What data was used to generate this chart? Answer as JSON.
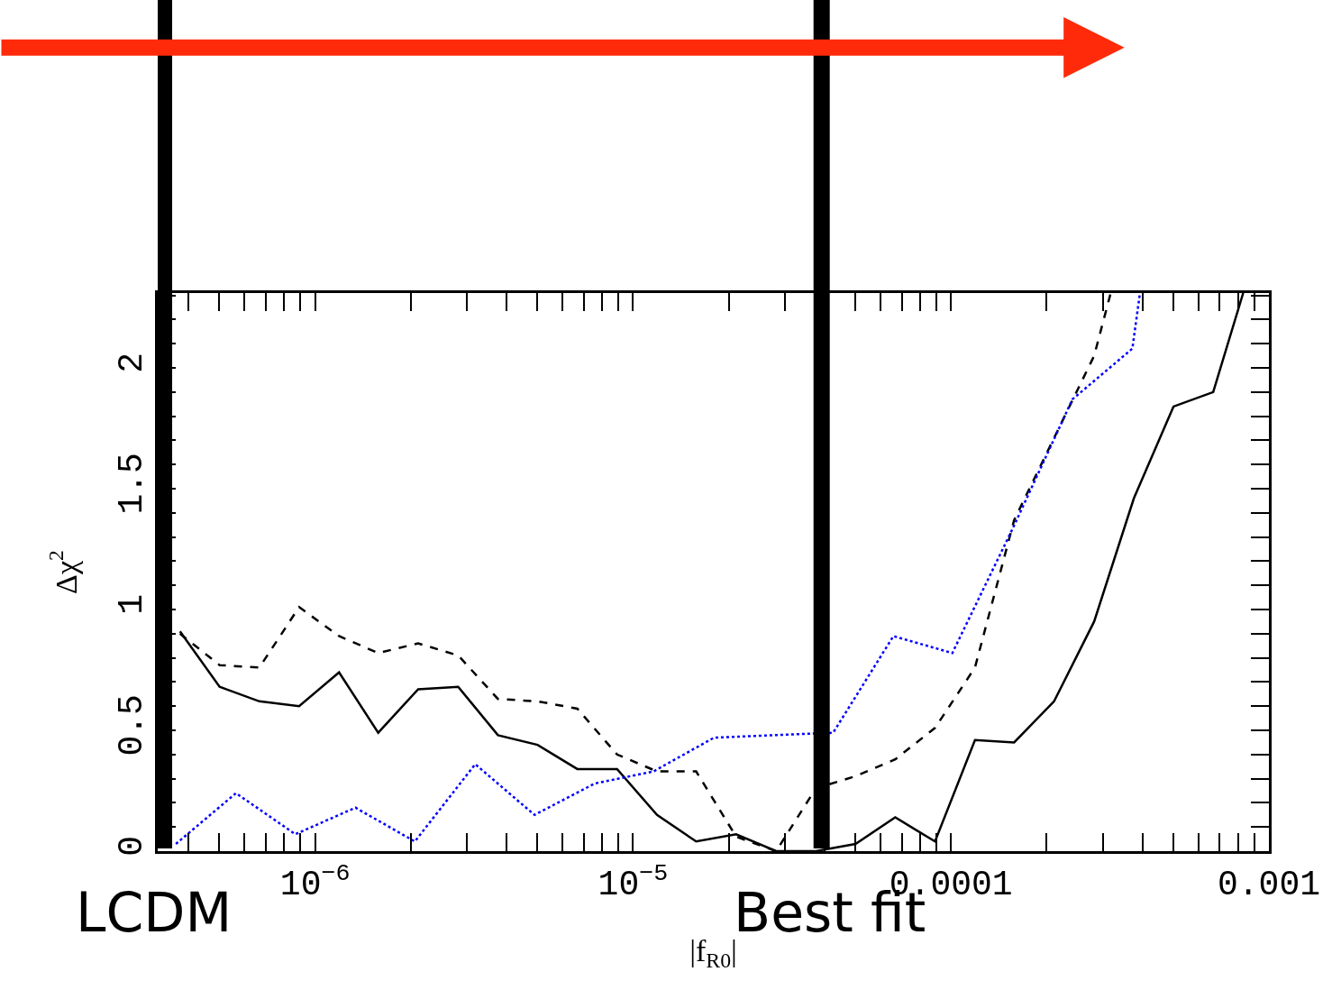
{
  "chart_data": {
    "type": "line",
    "xlabel": "|f$_{R0}$|",
    "ylabel": "Δχ$^{2}$",
    "xlim": [
      3.2e-07,
      0.001
    ],
    "ylim": [
      0,
      2.31
    ],
    "log": "x",
    "xticks": [
      {
        "value": 1e-06,
        "label": "10$^{−6}$"
      },
      {
        "value": 1e-05,
        "label": "10$^{−5}$"
      },
      0.0001,
      0.001
    ],
    "yticks": [
      0,
      0.5,
      1,
      1.5,
      2
    ],
    "marker": "none",
    "series": [
      {
        "color": "#000000",
        "line_style": "solid",
        "x": [
          3.76e-07,
          5.01e-07,
          6.68e-07,
          8.91e-07,
          1.19e-06,
          1.58e-06,
          2.11e-06,
          2.82e-06,
          3.76e-06,
          5.01e-06,
          6.68e-06,
          8.91e-06,
          1.19e-05,
          1.58e-05,
          2.11e-05,
          2.82e-05,
          3.76e-05,
          5.01e-05,
          6.68e-05,
          8.91e-05,
          0.000119,
          0.000158,
          0.000211,
          0.000282,
          0.000376,
          0.000501,
          0.000668,
          0.00083
        ],
        "values": [
          0.91,
          0.68,
          0.62,
          0.6,
          0.74,
          0.49,
          0.67,
          0.68,
          0.48,
          0.44,
          0.34,
          0.34,
          0.15,
          0.04,
          0.07,
          0,
          0,
          0.03,
          0.14,
          0.04,
          0.46,
          0.45,
          0.62,
          0.95,
          1.46,
          1.84,
          1.9,
          2.31
        ]
      },
      {
        "color": "#000000",
        "line_style": "dashed",
        "x": [
          3.76e-07,
          5.01e-07,
          6.68e-07,
          8.91e-07,
          1.19e-06,
          1.58e-06,
          2.11e-06,
          2.82e-06,
          3.76e-06,
          5.01e-06,
          6.68e-06,
          8.91e-06,
          1.19e-05,
          1.58e-05,
          2.11e-05,
          2.82e-05,
          3.76e-05,
          5.01e-05,
          6.68e-05,
          8.91e-05,
          0.000119,
          0.000158,
          0.000211,
          0.000282,
          0.000318
        ],
        "values": [
          0.9,
          0.77,
          0.76,
          1.01,
          0.89,
          0.82,
          0.86,
          0.81,
          0.63,
          0.62,
          0.59,
          0.4,
          0.33,
          0.33,
          0.06,
          0,
          0.26,
          0.31,
          0.38,
          0.51,
          0.76,
          1.37,
          1.71,
          2.05,
          2.31
        ]
      },
      {
        "color": "#0000ff",
        "line_style": "dotted",
        "x": [
          3.65e-07,
          5.64e-07,
          8.67e-07,
          1.34e-06,
          2.06e-06,
          3.19e-06,
          4.9e-06,
          7.58e-06,
          1.16e-05,
          1.8e-05,
          2.77e-05,
          4.26e-05,
          6.59e-05,
          0.000101,
          0.000157,
          0.000241,
          0.000372,
          0.000393
        ],
        "values": [
          0.03,
          0.24,
          0.07,
          0.18,
          0.04,
          0.36,
          0.15,
          0.28,
          0.33,
          0.47,
          0.48,
          0.49,
          0.89,
          0.82,
          1.34,
          1.87,
          2.08,
          2.31
        ]
      }
    ],
    "ref_lines": [
      {
        "axis": "x",
        "value": 3.35e-07,
        "label": "LCDM",
        "color": "#000000"
      },
      {
        "axis": "x",
        "value": 3.92e-05,
        "label": "Best fit",
        "color": "#000000"
      }
    ]
  }
}
